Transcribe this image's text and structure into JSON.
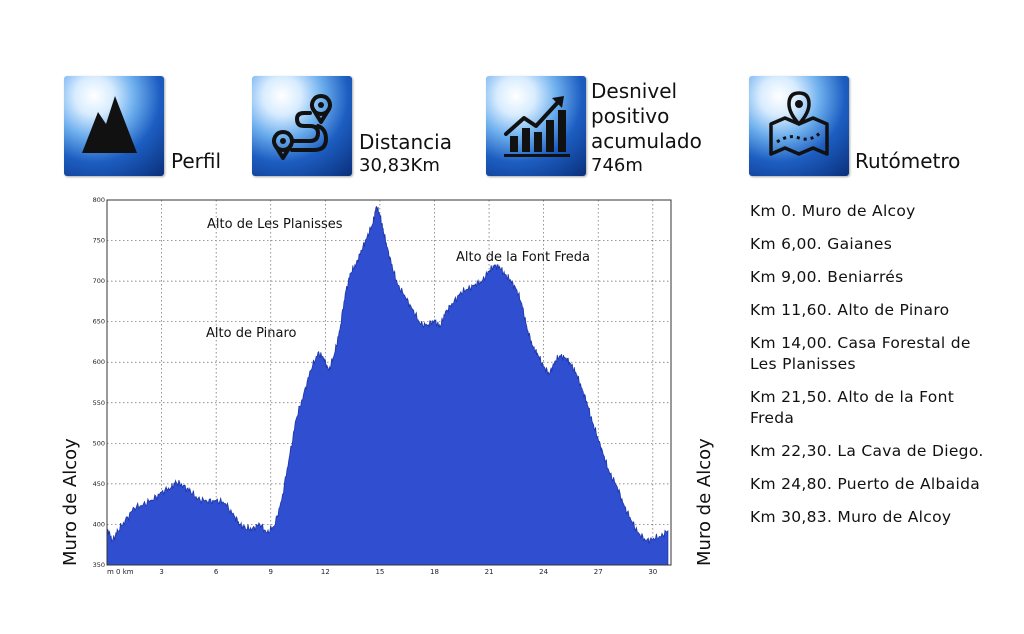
{
  "header": {
    "perfil_label": "Perfil",
    "distancia_label": "Distancia",
    "distancia_value": "30,83Km",
    "desnivel_label_1": "Desnivel",
    "desnivel_label_2": "positivo",
    "desnivel_label_3": "acumulado",
    "desnivel_value": "746m",
    "rutometro_label": "Rutómetro"
  },
  "icons": [
    "mountain-icon",
    "route-icon",
    "growth-chart-icon",
    "map-pin-icon"
  ],
  "route": [
    "Km 0. Muro de Alcoy",
    "Km 6,00. Gaianes",
    "Km 9,00. Beniarrés",
    "Km 11,60. Alto de Pinaro",
    "Km 14,00. Casa Forestal de Les Planisses",
    "Km 21,50. Alto de la Font Freda",
    "Km 22,30. La Cava de Diego.",
    "Km 24,80. Puerto de Albaida",
    "Km 30,83. Muro de Alcoy"
  ],
  "side_labels": {
    "left": "Muro de Alcoy",
    "right": "Muro de Alcoy"
  },
  "colors": {
    "area": "#2f4fd0",
    "area_edge": "#1e36a8",
    "tile_dark": "#0a2f7a",
    "tile_light": "#6fb0ee"
  },
  "chart_data": {
    "type": "area",
    "title": "",
    "xlabel": "",
    "ylabel": "",
    "xlim": [
      0,
      31
    ],
    "ylim": [
      350,
      800
    ],
    "xticks": [
      0,
      3,
      6,
      9,
      12,
      15,
      18,
      21,
      24,
      27,
      30
    ],
    "xtick_labels": [
      "m 0 km",
      "3",
      "6",
      "9",
      "12",
      "15",
      "18",
      "21",
      "24",
      "27",
      "30"
    ],
    "yticks": [
      350,
      400,
      450,
      500,
      550,
      600,
      650,
      700,
      750,
      800
    ],
    "ytick_labels": [
      "350",
      "400",
      "450",
      "500",
      "550",
      "600",
      "650",
      "700",
      "750",
      "800"
    ],
    "grid": true,
    "x": [
      0,
      0.3,
      0.6,
      1.0,
      1.5,
      2.0,
      2.5,
      3.0,
      3.5,
      3.8,
      4.2,
      4.6,
      5.0,
      5.5,
      6.0,
      6.5,
      7.0,
      7.3,
      7.6,
      8.0,
      8.4,
      8.8,
      9.2,
      9.6,
      10.0,
      10.4,
      10.8,
      11.2,
      11.6,
      11.9,
      12.2,
      12.5,
      12.8,
      13.1,
      13.4,
      13.7,
      14.0,
      14.3,
      14.6,
      14.8,
      15.0,
      15.2,
      15.4,
      15.7,
      16.0,
      16.4,
      16.8,
      17.2,
      17.6,
      18.0,
      18.3,
      18.6,
      19.0,
      19.4,
      19.8,
      20.2,
      20.6,
      21.0,
      21.3,
      21.6,
      21.9,
      22.2,
      22.5,
      22.8,
      23.1,
      23.4,
      23.7,
      24.0,
      24.3,
      24.6,
      24.9,
      25.2,
      25.5,
      25.8,
      26.1,
      26.4,
      26.7,
      27.0,
      27.3,
      27.6,
      28.0,
      28.4,
      28.8,
      29.2,
      29.6,
      30.0,
      30.4,
      30.83
    ],
    "y": [
      395,
      380,
      392,
      405,
      420,
      425,
      430,
      440,
      445,
      452,
      448,
      440,
      432,
      428,
      430,
      426,
      410,
      400,
      395,
      395,
      400,
      390,
      398,
      430,
      480,
      530,
      560,
      590,
      612,
      605,
      590,
      610,
      640,
      685,
      710,
      722,
      738,
      755,
      770,
      792,
      782,
      760,
      742,
      715,
      695,
      680,
      665,
      648,
      645,
      652,
      643,
      662,
      672,
      685,
      690,
      695,
      700,
      712,
      720,
      716,
      708,
      700,
      690,
      672,
      640,
      620,
      608,
      595,
      585,
      600,
      608,
      605,
      598,
      585,
      568,
      548,
      525,
      505,
      485,
      465,
      448,
      425,
      405,
      390,
      380,
      382,
      385,
      392
    ]
  },
  "annotations": [
    {
      "text": "Alto de Les Planisses"
    },
    {
      "text": "Alto de la Font Freda"
    },
    {
      "text": "Alto de Pinaro"
    }
  ]
}
